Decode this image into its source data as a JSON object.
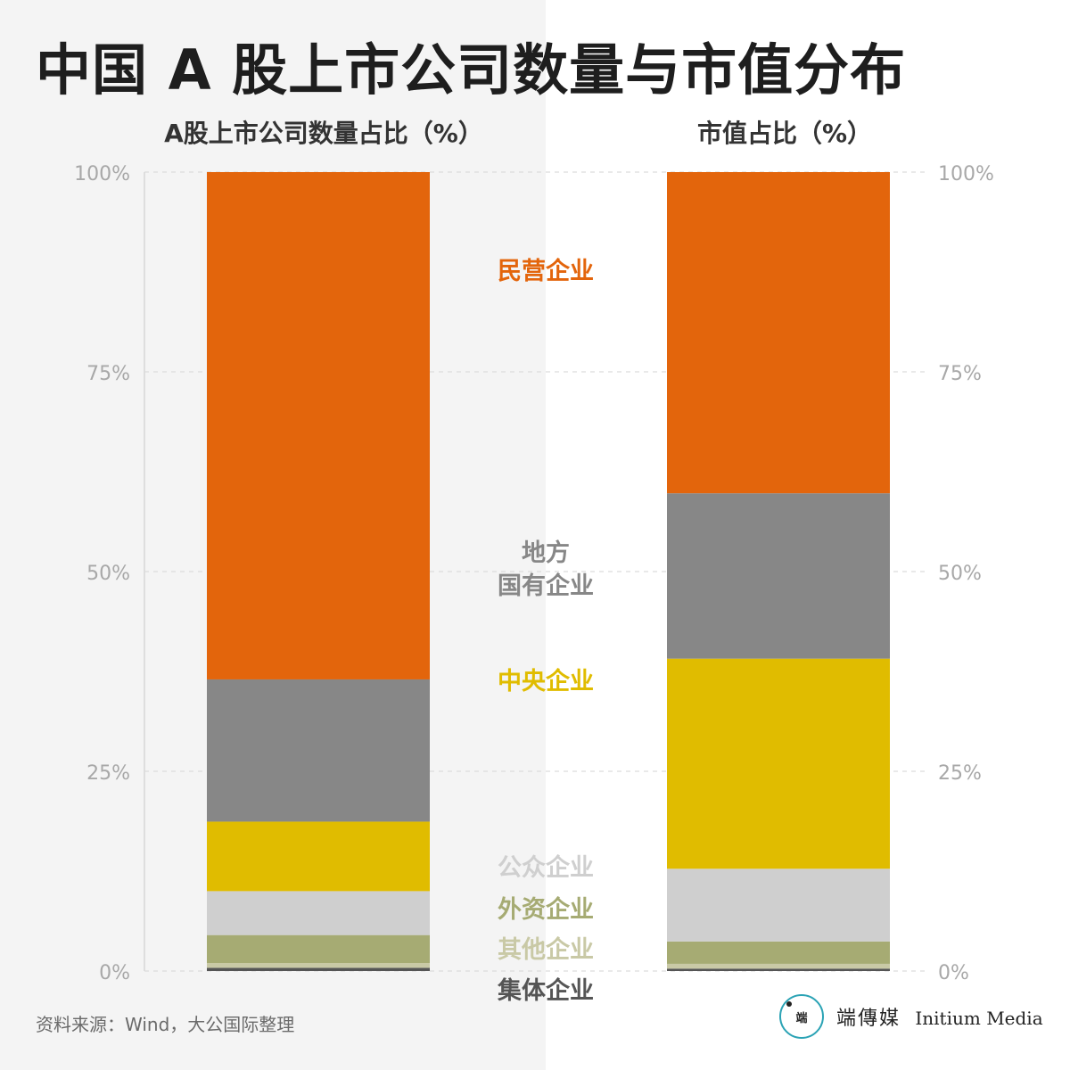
{
  "title": "中国 A 股上市公司数量与市值分布",
  "source": "资料来源：Wind，大公国际整理",
  "logo": {
    "mark": "端",
    "name_cn": "端傳媒",
    "name_en": "Initium Media"
  },
  "colors": {
    "民营企业": "#e3650c",
    "地方国有企业": "#878787",
    "中央企业": "#e0bc00",
    "公众企业": "#cfcfcf",
    "外资企业": "#a6ab73",
    "其他企业": "#c9c9a6",
    "集体企业": "#555555",
    "accent_logo": "#2ba3b5"
  },
  "chart_data": {
    "type": "bar",
    "stacked": true,
    "orientation": "vertical",
    "categories": [
      "A股上市公司数量占比（%）",
      "市值占比（%）"
    ],
    "ylim": [
      0,
      100
    ],
    "yticks": [
      "0%",
      "25%",
      "50%",
      "75%",
      "100%"
    ],
    "ytick_values": [
      0,
      25,
      50,
      75,
      100
    ],
    "grid": true,
    "legend": "center, between bars",
    "series": [
      {
        "name": "集体企业",
        "values": [
          0.4,
          0.3
        ]
      },
      {
        "name": "其他企业",
        "values": [
          0.6,
          0.6
        ]
      },
      {
        "name": "外资企业",
        "values": [
          3.5,
          2.8
        ]
      },
      {
        "name": "公众企业",
        "values": [
          5.5,
          9.1
        ]
      },
      {
        "name": "中央企业",
        "values": [
          8.7,
          26.3
        ]
      },
      {
        "name": "地方国有企业",
        "values": [
          17.8,
          20.7
        ]
      },
      {
        "name": "民营企业",
        "values": [
          63.5,
          40.2
        ]
      }
    ],
    "legend_labels": [
      {
        "text": "民营企业",
        "series": "民营企业"
      },
      {
        "text": "地方",
        "series": "地方国有企业"
      },
      {
        "text": "国有企业",
        "series": "地方国有企业"
      },
      {
        "text": "中央企业",
        "series": "中央企业"
      },
      {
        "text": "公众企业",
        "series": "公众企业"
      },
      {
        "text": "外资企业",
        "series": "外资企业"
      },
      {
        "text": "其他企业",
        "series": "其他企业"
      },
      {
        "text": "集体企业",
        "series": "集体企业"
      }
    ]
  }
}
